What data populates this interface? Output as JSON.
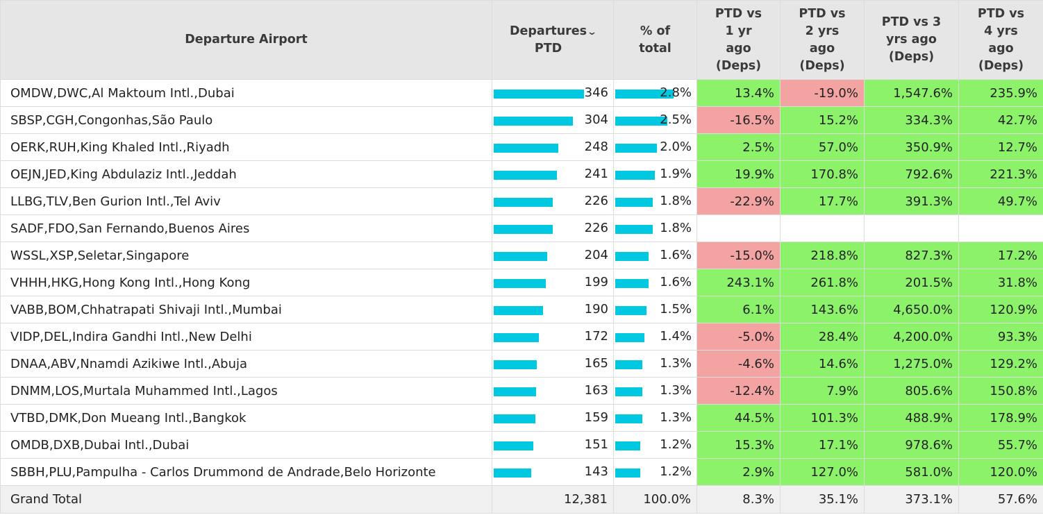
{
  "headers": {
    "airport": "Departure Airport",
    "departures": "Departures\nPTD",
    "pct": "% of\ntotal",
    "vs1": "PTD vs\n1 yr\nago\n(Deps)",
    "vs2": "PTD vs\n2 yrs\nago\n(Deps)",
    "vs3": "PTD vs 3\nyrs ago\n(Deps)",
    "vs4": "PTD vs\n4 yrs\nago\n(Deps)"
  },
  "sort_icon": "chevron-down-icon",
  "colors": {
    "bar": "#00c8e0",
    "positive": "#8cf26a",
    "negative": "#f4a3a3"
  },
  "rows": [
    {
      "airport": "OMDW,DWC,Al Maktoum Intl.,Dubai",
      "deps": "346",
      "deps_value": 346,
      "pct": "2.8%",
      "pct_value": 2.8,
      "vs1": "13.4%",
      "vs1_sign": "pos",
      "vs2": "-19.0%",
      "vs2_sign": "neg",
      "vs3": "1,547.6%",
      "vs3_sign": "pos",
      "vs4": "235.9%",
      "vs4_sign": "pos"
    },
    {
      "airport": "SBSP,CGH,Congonhas,São Paulo",
      "deps": "304",
      "deps_value": 304,
      "pct": "2.5%",
      "pct_value": 2.5,
      "vs1": "-16.5%",
      "vs1_sign": "neg",
      "vs2": "15.2%",
      "vs2_sign": "pos",
      "vs3": "334.3%",
      "vs3_sign": "pos",
      "vs4": "42.7%",
      "vs4_sign": "pos"
    },
    {
      "airport": "OERK,RUH,King Khaled Intl.,Riyadh",
      "deps": "248",
      "deps_value": 248,
      "pct": "2.0%",
      "pct_value": 2.0,
      "vs1": "2.5%",
      "vs1_sign": "pos",
      "vs2": "57.0%",
      "vs2_sign": "pos",
      "vs3": "350.9%",
      "vs3_sign": "pos",
      "vs4": "12.7%",
      "vs4_sign": "pos"
    },
    {
      "airport": "OEJN,JED,King Abdulaziz Intl.,Jeddah",
      "deps": "241",
      "deps_value": 241,
      "pct": "1.9%",
      "pct_value": 1.9,
      "vs1": "19.9%",
      "vs1_sign": "pos",
      "vs2": "170.8%",
      "vs2_sign": "pos",
      "vs3": "792.6%",
      "vs3_sign": "pos",
      "vs4": "221.3%",
      "vs4_sign": "pos"
    },
    {
      "airport": "LLBG,TLV,Ben Gurion Intl.,Tel Aviv",
      "deps": "226",
      "deps_value": 226,
      "pct": "1.8%",
      "pct_value": 1.8,
      "vs1": "-22.9%",
      "vs1_sign": "neg",
      "vs2": "17.7%",
      "vs2_sign": "pos",
      "vs3": "391.3%",
      "vs3_sign": "pos",
      "vs4": "49.7%",
      "vs4_sign": "pos"
    },
    {
      "airport": "SADF,FDO,San Fernando,Buenos Aires",
      "deps": "226",
      "deps_value": 226,
      "pct": "1.8%",
      "pct_value": 1.8,
      "vs1": "",
      "vs1_sign": "none",
      "vs2": "",
      "vs2_sign": "none",
      "vs3": "",
      "vs3_sign": "none",
      "vs4": "",
      "vs4_sign": "none"
    },
    {
      "airport": "WSSL,XSP,Seletar,Singapore",
      "deps": "204",
      "deps_value": 204,
      "pct": "1.6%",
      "pct_value": 1.6,
      "vs1": "-15.0%",
      "vs1_sign": "neg",
      "vs2": "218.8%",
      "vs2_sign": "pos",
      "vs3": "827.3%",
      "vs3_sign": "pos",
      "vs4": "17.2%",
      "vs4_sign": "pos"
    },
    {
      "airport": "VHHH,HKG,Hong Kong Intl.,Hong Kong",
      "deps": "199",
      "deps_value": 199,
      "pct": "1.6%",
      "pct_value": 1.6,
      "vs1": "243.1%",
      "vs1_sign": "pos",
      "vs2": "261.8%",
      "vs2_sign": "pos",
      "vs3": "201.5%",
      "vs3_sign": "pos",
      "vs4": "31.8%",
      "vs4_sign": "pos"
    },
    {
      "airport": "VABB,BOM,Chhatrapati Shivaji Intl.,Mumbai",
      "deps": "190",
      "deps_value": 190,
      "pct": "1.5%",
      "pct_value": 1.5,
      "vs1": "6.1%",
      "vs1_sign": "pos",
      "vs2": "143.6%",
      "vs2_sign": "pos",
      "vs3": "4,650.0%",
      "vs3_sign": "pos",
      "vs4": "120.9%",
      "vs4_sign": "pos"
    },
    {
      "airport": "VIDP,DEL,Indira Gandhi Intl.,New Delhi",
      "deps": "172",
      "deps_value": 172,
      "pct": "1.4%",
      "pct_value": 1.4,
      "vs1": "-5.0%",
      "vs1_sign": "neg",
      "vs2": "28.4%",
      "vs2_sign": "pos",
      "vs3": "4,200.0%",
      "vs3_sign": "pos",
      "vs4": "93.3%",
      "vs4_sign": "pos"
    },
    {
      "airport": "DNAA,ABV,Nnamdi Azikiwe Intl.,Abuja",
      "deps": "165",
      "deps_value": 165,
      "pct": "1.3%",
      "pct_value": 1.3,
      "vs1": "-4.6%",
      "vs1_sign": "neg",
      "vs2": "14.6%",
      "vs2_sign": "pos",
      "vs3": "1,275.0%",
      "vs3_sign": "pos",
      "vs4": "129.2%",
      "vs4_sign": "pos"
    },
    {
      "airport": "DNMM,LOS,Murtala Muhammed Intl.,Lagos",
      "deps": "163",
      "deps_value": 163,
      "pct": "1.3%",
      "pct_value": 1.3,
      "vs1": "-12.4%",
      "vs1_sign": "neg",
      "vs2": "7.9%",
      "vs2_sign": "pos",
      "vs3": "805.6%",
      "vs3_sign": "pos",
      "vs4": "150.8%",
      "vs4_sign": "pos"
    },
    {
      "airport": "VTBD,DMK,Don Mueang Intl.,Bangkok",
      "deps": "159",
      "deps_value": 159,
      "pct": "1.3%",
      "pct_value": 1.3,
      "vs1": "44.5%",
      "vs1_sign": "pos",
      "vs2": "101.3%",
      "vs2_sign": "pos",
      "vs3": "488.9%",
      "vs3_sign": "pos",
      "vs4": "178.9%",
      "vs4_sign": "pos"
    },
    {
      "airport": "OMDB,DXB,Dubai Intl.,Dubai",
      "deps": "151",
      "deps_value": 151,
      "pct": "1.2%",
      "pct_value": 1.2,
      "vs1": "15.3%",
      "vs1_sign": "pos",
      "vs2": "17.1%",
      "vs2_sign": "pos",
      "vs3": "978.6%",
      "vs3_sign": "pos",
      "vs4": "55.7%",
      "vs4_sign": "pos"
    },
    {
      "airport": "SBBH,PLU,Pampulha - Carlos Drummond de Andrade,Belo Horizonte",
      "deps": "143",
      "deps_value": 143,
      "pct": "1.2%",
      "pct_value": 1.2,
      "vs1": "2.9%",
      "vs1_sign": "pos",
      "vs2": "127.0%",
      "vs2_sign": "pos",
      "vs3": "581.0%",
      "vs3_sign": "pos",
      "vs4": "120.0%",
      "vs4_sign": "pos"
    }
  ],
  "total": {
    "label": "Grand Total",
    "deps": "12,381",
    "pct": "100.0%",
    "vs1": "8.3%",
    "vs2": "35.1%",
    "vs3": "373.1%",
    "vs4": "57.6%"
  }
}
